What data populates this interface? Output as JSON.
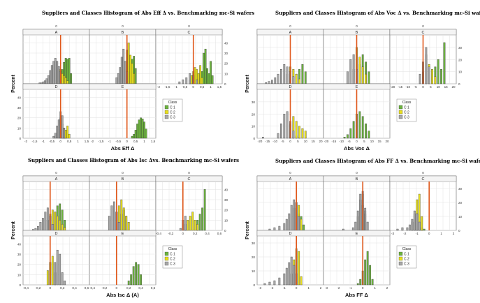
{
  "figure": {
    "legend_title": "Class",
    "class_names": [
      "C 1",
      "C 2",
      "C 3"
    ],
    "colors": {
      "C 1": "#6cb33e",
      "C 2": "#e8df1c",
      "C 3": "#a9a9a9",
      "benchmark": "#e0581b",
      "grid": "#e2e2e2"
    },
    "ylabel": "Percent"
  },
  "chart_data": [
    {
      "type": "bar",
      "title": "Suppliers and Classes Histogram of Abs Eff Δ vs. Benchmarking mc-Si wafers",
      "xlabel": "Abs Eff Δ",
      "ylabel": "Percent",
      "panel_labels": [
        "A",
        "B",
        "C",
        "D",
        "E"
      ],
      "top_axis_label": "0",
      "x_ticks": [
        "-2",
        "-1,5",
        "-1",
        "-0,5",
        "0",
        "0,5",
        "1",
        "1,5"
      ],
      "xlim": [
        -2,
        1.5
      ],
      "y_ticks": [
        "0",
        "10",
        "20",
        "30",
        "40"
      ],
      "ylim": [
        0,
        45
      ],
      "benchmark_x": 0,
      "series": [
        {
          "name": "C 1",
          "panel": "A",
          "x": [
            0.1,
            0.2,
            0.3,
            0.4,
            0.5,
            0.6
          ],
          "values": [
            14,
            21,
            25,
            24,
            25,
            10
          ]
        },
        {
          "name": "C 2",
          "panel": "A",
          "x": [
            -0.3,
            -0.2,
            -0.1,
            0,
            0.1,
            0.2,
            0.3,
            0.4
          ],
          "values": [
            10,
            13,
            14,
            14,
            10,
            8,
            6,
            3
          ]
        },
        {
          "name": "C 3",
          "panel": "A",
          "x": [
            -1.2,
            -1.1,
            -1,
            -0.9,
            -0.8,
            -0.7,
            -0.6,
            -0.5,
            -0.4,
            -0.3,
            -0.2,
            -0.1,
            0
          ],
          "values": [
            1,
            1,
            2,
            3,
            5,
            8,
            13,
            18,
            22,
            25,
            22,
            17,
            12
          ]
        },
        {
          "name": "C 1",
          "panel": "B",
          "x": [
            0.2,
            0.3,
            0.4,
            0.5
          ],
          "values": [
            18,
            24,
            27,
            15
          ]
        },
        {
          "name": "C 2",
          "panel": "B",
          "x": [
            -0.1,
            0,
            0.1,
            0.2,
            0.3,
            0.4
          ],
          "values": [
            14,
            33,
            40,
            28,
            20,
            10
          ]
        },
        {
          "name": "C 3",
          "panel": "B",
          "x": [
            -0.6,
            -0.5,
            -0.4,
            -0.3,
            -0.2,
            -0.1,
            0
          ],
          "values": [
            6,
            10,
            16,
            26,
            34,
            22,
            12
          ]
        },
        {
          "name": "C 1",
          "panel": "C",
          "x": [
            0.3,
            0.4,
            0.5,
            0.6,
            0.7,
            0.8,
            0.9,
            1,
            1.1
          ],
          "values": [
            5,
            10,
            12,
            30,
            34,
            15,
            10,
            22,
            8
          ]
        },
        {
          "name": "C 2",
          "panel": "C",
          "x": [
            -0.2,
            -0.1,
            0,
            0.1,
            0.2,
            0.3,
            0.4,
            0.5
          ],
          "values": [
            4,
            8,
            12,
            16,
            14,
            10,
            18,
            6
          ]
        },
        {
          "name": "C 3",
          "panel": "C",
          "x": [
            -0.8,
            -0.6,
            -0.4,
            -0.2,
            0,
            0.2
          ],
          "values": [
            2,
            4,
            6,
            10,
            8,
            4
          ]
        },
        {
          "name": "C 1",
          "panel": "D",
          "x": [
            0.2,
            0.3
          ],
          "values": [
            4,
            2
          ]
        },
        {
          "name": "C 2",
          "panel": "D",
          "x": [
            0,
            0.1,
            0.2,
            0.3,
            0.4,
            0.5
          ],
          "values": [
            20,
            14,
            10,
            8,
            12,
            4
          ]
        },
        {
          "name": "C 3",
          "panel": "D",
          "x": [
            -0.4,
            -0.3,
            -0.2,
            -0.1,
            0,
            0.1,
            0.2
          ],
          "values": [
            2,
            5,
            12,
            18,
            26,
            22,
            10
          ]
        },
        {
          "name": "C 1",
          "panel": "E",
          "x": [
            0.3,
            0.4,
            0.5,
            0.6,
            0.7,
            0.8,
            0.9,
            1,
            1.1
          ],
          "values": [
            2,
            4,
            8,
            14,
            18,
            20,
            19,
            16,
            9
          ]
        }
      ]
    },
    {
      "type": "bar",
      "title": "Suppliers and Classes Histogram of Abs Voc Δ vs. Benchmarking mc-Si wafers",
      "xlabel": "Abs Voc Δ",
      "ylabel": "Percent",
      "panel_labels": [
        "A",
        "B",
        "C",
        "D",
        "E"
      ],
      "top_axis_label": "0",
      "x_ticks": [
        "-20",
        "-15",
        "-10",
        "-5",
        "0",
        "5",
        "10",
        "15",
        "20"
      ],
      "xlim": [
        -20,
        20
      ],
      "y_ticks": [
        "0",
        "10",
        "20",
        "30"
      ],
      "ylim": [
        0,
        38
      ],
      "benchmark_x": 0,
      "series": [
        {
          "name": "C 1",
          "panel": "A",
          "x": [
            4,
            6,
            8,
            10
          ],
          "values": [
            8,
            12,
            16,
            10
          ]
        },
        {
          "name": "C 2",
          "panel": "A",
          "x": [
            -2,
            0,
            2,
            4,
            6
          ],
          "values": [
            8,
            14,
            12,
            8,
            4
          ]
        },
        {
          "name": "C 3",
          "panel": "A",
          "x": [
            -16,
            -14,
            -12,
            -10,
            -8,
            -6,
            -4,
            -2,
            0,
            2
          ],
          "values": [
            1,
            2,
            3,
            5,
            8,
            12,
            16,
            14,
            10,
            6
          ]
        },
        {
          "name": "C 1",
          "panel": "B",
          "x": [
            2,
            4,
            6,
            8
          ],
          "values": [
            16,
            24,
            18,
            10
          ]
        },
        {
          "name": "C 2",
          "panel": "B",
          "x": [
            -2,
            0,
            2,
            4,
            6
          ],
          "values": [
            12,
            30,
            22,
            14,
            8
          ]
        },
        {
          "name": "C 3",
          "panel": "B",
          "x": [
            -6,
            -4,
            -2,
            0
          ],
          "values": [
            10,
            20,
            24,
            12
          ]
        },
        {
          "name": "C 1",
          "panel": "C",
          "x": [
            8,
            10,
            12,
            14
          ],
          "values": [
            14,
            20,
            12,
            34
          ]
        },
        {
          "name": "C 2",
          "panel": "C",
          "x": [
            0,
            2,
            4,
            6,
            8
          ],
          "values": [
            10,
            24,
            16,
            12,
            6
          ]
        },
        {
          "name": "C 3",
          "panel": "C",
          "x": [
            -2,
            0,
            2,
            4
          ],
          "values": [
            8,
            18,
            30,
            14
          ]
        },
        {
          "name": "C 1",
          "panel": "D",
          "x": [
            4,
            6
          ],
          "values": [
            2,
            1
          ]
        },
        {
          "name": "C 2",
          "panel": "D",
          "x": [
            0,
            2,
            4,
            6,
            8,
            10
          ],
          "values": [
            12,
            18,
            14,
            10,
            8,
            6
          ]
        },
        {
          "name": "C 3",
          "panel": "D",
          "x": [
            -18,
            -8,
            -6,
            -4,
            -2,
            0,
            2
          ],
          "values": [
            1,
            4,
            12,
            20,
            22,
            14,
            6
          ]
        },
        {
          "name": "C 1",
          "panel": "E",
          "x": [
            -8,
            -6,
            -4,
            -2,
            0,
            2,
            4,
            6,
            8
          ],
          "values": [
            1,
            3,
            8,
            14,
            20,
            22,
            18,
            12,
            6
          ]
        }
      ]
    },
    {
      "type": "bar",
      "title": "Suppliers and Classes Histogram of Abs Isc Δvs. Benchmarking mc-Si wafers",
      "xlabel": "Abs Isc Δ (A)",
      "ylabel": "Percent",
      "panel_labels": [
        "A",
        "B",
        "C",
        "D",
        "E"
      ],
      "top_axis_label": "0",
      "x_ticks": [
        "-0,4",
        "-0,2",
        "0",
        "0,2",
        "0,4",
        "0,6"
      ],
      "xlim": [
        -0.4,
        0.6
      ],
      "y_ticks": [
        "0",
        "10",
        "20",
        "30",
        "40"
      ],
      "ylim": [
        0,
        45
      ],
      "benchmark_x": 0,
      "series": [
        {
          "name": "C 1",
          "panel": "A",
          "x": [
            0.08,
            0.12,
            0.16,
            0.2,
            0.24
          ],
          "values": [
            18,
            24,
            26,
            20,
            10
          ]
        },
        {
          "name": "C 2",
          "panel": "A",
          "x": [
            -0.04,
            0,
            0.04,
            0.08,
            0.12,
            0.16,
            0.2,
            0.24
          ],
          "values": [
            10,
            16,
            20,
            18,
            14,
            10,
            6,
            3
          ]
        },
        {
          "name": "C 3",
          "panel": "A",
          "x": [
            -0.28,
            -0.24,
            -0.2,
            -0.16,
            -0.12,
            -0.08,
            -0.04,
            0,
            0.04
          ],
          "values": [
            1,
            2,
            4,
            8,
            12,
            18,
            22,
            14,
            6
          ]
        },
        {
          "name": "C 1",
          "panel": "B",
          "x": [
            0.08,
            0.12,
            0.16
          ],
          "values": [
            16,
            20,
            14
          ]
        },
        {
          "name": "C 2",
          "panel": "B",
          "x": [
            0,
            0.04,
            0.08,
            0.12,
            0.16,
            0.2
          ],
          "values": [
            18,
            24,
            30,
            22,
            14,
            8
          ]
        },
        {
          "name": "C 3",
          "panel": "B",
          "x": [
            -0.12,
            -0.08,
            -0.04,
            0,
            0.04
          ],
          "values": [
            14,
            24,
            28,
            18,
            8
          ]
        },
        {
          "name": "C 1",
          "panel": "C",
          "x": [
            0.24,
            0.28,
            0.32,
            0.36
          ],
          "values": [
            10,
            16,
            22,
            40
          ]
        },
        {
          "name": "C 2",
          "panel": "C",
          "x": [
            0.04,
            0.08,
            0.12,
            0.16,
            0.2,
            0.24
          ],
          "values": [
            6,
            10,
            14,
            18,
            10,
            6
          ]
        },
        {
          "name": "C 3",
          "panel": "C",
          "x": [
            -0.04,
            0,
            0.04
          ],
          "values": [
            2,
            10,
            14
          ]
        },
        {
          "name": "C 2",
          "panel": "D",
          "x": [
            -0.04,
            0,
            0.04,
            0.08
          ],
          "values": [
            14,
            22,
            28,
            12
          ]
        },
        {
          "name": "C 3",
          "panel": "D",
          "x": [
            0.08,
            0.12,
            0.16,
            0.2,
            0.24
          ],
          "values": [
            22,
            34,
            30,
            12,
            4
          ]
        },
        {
          "name": "C 1",
          "panel": "E",
          "x": [
            0.2,
            0.24,
            0.28,
            0.32,
            0.36,
            0.4
          ],
          "values": [
            4,
            10,
            18,
            22,
            20,
            10
          ]
        }
      ]
    },
    {
      "type": "bar",
      "title": "Suppliers and Classes Histogram of Abs FF Δ vs. Benchmarking mc-Si wafers",
      "xlabel": "Abs FF Δ",
      "ylabel": "Percent",
      "panel_labels": [
        "A",
        "B",
        "C",
        "D",
        "E"
      ],
      "top_axis_label": "0",
      "x_ticks": [
        "-3",
        "-2",
        "-1",
        "0",
        "1",
        "2"
      ],
      "xlim": [
        -3,
        2
      ],
      "y_ticks": [
        "0",
        "10",
        "20",
        "30"
      ],
      "ylim": [
        0,
        33
      ],
      "benchmark_x": 0,
      "series": [
        {
          "name": "C 1",
          "panel": "A",
          "x": [
            0.2,
            0.4,
            0.6
          ],
          "values": [
            12,
            10,
            4
          ]
        },
        {
          "name": "C 2",
          "panel": "A",
          "x": [
            -0.2,
            0,
            0.2,
            0.4
          ],
          "values": [
            16,
            20,
            18,
            8
          ]
        },
        {
          "name": "C 3",
          "panel": "A",
          "x": [
            -2.2,
            -1.8,
            -1.4,
            -1,
            -0.8,
            -0.6,
            -0.4,
            -0.2,
            0,
            0.2
          ],
          "values": [
            1,
            2,
            3,
            5,
            8,
            12,
            18,
            22,
            20,
            10
          ]
        },
        {
          "name": "C 1",
          "panel": "B",
          "x": [
            0,
            0.2
          ],
          "values": [
            18,
            12
          ]
        },
        {
          "name": "C 2",
          "panel": "B",
          "x": [
            -0.4,
            -0.2,
            0,
            0.2
          ],
          "values": [
            10,
            22,
            26,
            14
          ]
        },
        {
          "name": "C 3",
          "panel": "B",
          "x": [
            -1.6,
            -0.8,
            -0.6,
            -0.4,
            -0.2,
            0,
            0.2,
            0.4
          ],
          "values": [
            1,
            2,
            6,
            14,
            26,
            28,
            16,
            6
          ]
        },
        {
          "name": "C 1",
          "panel": "C",
          "x": [
            -0.6,
            -0.4
          ],
          "values": [
            2,
            1
          ]
        },
        {
          "name": "C 2",
          "panel": "C",
          "x": [
            -1.4,
            -1.2,
            -1,
            -0.8,
            -0.6
          ],
          "values": [
            6,
            12,
            22,
            26,
            10
          ]
        },
        {
          "name": "C 3",
          "panel": "C",
          "x": [
            -2.6,
            -2.2,
            -1.8,
            -1.6,
            -1.4,
            -1.2,
            -1,
            -0.8
          ],
          "values": [
            1,
            2,
            2,
            4,
            8,
            14,
            12,
            6
          ]
        },
        {
          "name": "C 2",
          "panel": "D",
          "x": [
            -0.4,
            -0.2,
            0,
            0.2,
            0.4
          ],
          "values": [
            8,
            18,
            26,
            24,
            6
          ]
        },
        {
          "name": "C 3",
          "panel": "D",
          "x": [
            -2.6,
            -2.2,
            -1.8,
            -1.4,
            -1,
            -0.8,
            -0.6,
            -0.4,
            -0.2,
            0
          ],
          "values": [
            1,
            2,
            3,
            5,
            8,
            12,
            16,
            20,
            14,
            8
          ]
        },
        {
          "name": "C 1",
          "panel": "E",
          "x": [
            -0.4,
            -0.2,
            0,
            0.2,
            0.4,
            0.6,
            0.8
          ],
          "values": [
            1,
            4,
            10,
            18,
            24,
            14,
            4
          ]
        }
      ]
    }
  ]
}
